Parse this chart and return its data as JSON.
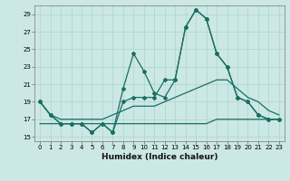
{
  "xlabel": "Humidex (Indice chaleur)",
  "bg_color": "#cce8e4",
  "grid_color": "#aad4d0",
  "line_color": "#1a6e64",
  "xlim": [
    -0.5,
    23.5
  ],
  "ylim": [
    14.5,
    30.0
  ],
  "yticks": [
    15,
    17,
    19,
    21,
    23,
    25,
    27,
    29
  ],
  "xticks": [
    0,
    1,
    2,
    3,
    4,
    5,
    6,
    7,
    8,
    9,
    10,
    11,
    12,
    13,
    14,
    15,
    16,
    17,
    18,
    19,
    20,
    21,
    22,
    23
  ],
  "line1_x": [
    0,
    1,
    2,
    3,
    4,
    5,
    6,
    7,
    8,
    9,
    10,
    11,
    12,
    13,
    14,
    15,
    16,
    17,
    18,
    19,
    20,
    21,
    22,
    23
  ],
  "line1_y": [
    19.0,
    17.5,
    16.5,
    16.5,
    16.5,
    15.5,
    16.5,
    15.5,
    19.0,
    19.5,
    19.5,
    19.5,
    21.5,
    21.5,
    27.5,
    29.5,
    28.5,
    24.5,
    23.0,
    19.5,
    19.0,
    17.5,
    17.0,
    17.0
  ],
  "line2_x": [
    0,
    1,
    2,
    3,
    4,
    5,
    6,
    7,
    8,
    9,
    10,
    11,
    12,
    13,
    14,
    15,
    16,
    17,
    18,
    19,
    20,
    21,
    22,
    23
  ],
  "line2_y": [
    19.0,
    17.5,
    16.5,
    16.5,
    16.5,
    15.5,
    16.5,
    15.5,
    20.5,
    24.5,
    22.5,
    20.0,
    19.5,
    21.5,
    27.5,
    29.5,
    28.5,
    24.5,
    23.0,
    19.5,
    19.0,
    17.5,
    17.0,
    17.0
  ],
  "line3_x": [
    0,
    1,
    2,
    3,
    4,
    5,
    6,
    7,
    8,
    9,
    10,
    11,
    12,
    13,
    14,
    15,
    16,
    17,
    18,
    19,
    20,
    21,
    22,
    23
  ],
  "line3_y": [
    16.5,
    16.5,
    16.5,
    16.5,
    16.5,
    16.5,
    16.5,
    16.5,
    16.5,
    16.5,
    16.5,
    16.5,
    16.5,
    16.5,
    16.5,
    16.5,
    16.5,
    17.0,
    17.0,
    17.0,
    17.0,
    17.0,
    17.0,
    17.0
  ],
  "line4_x": [
    0,
    1,
    2,
    3,
    4,
    5,
    6,
    7,
    8,
    9,
    10,
    11,
    12,
    13,
    14,
    15,
    16,
    17,
    18,
    19,
    20,
    21,
    22,
    23
  ],
  "line4_y": [
    19.0,
    17.5,
    17.0,
    17.0,
    17.0,
    17.0,
    17.0,
    17.5,
    18.0,
    18.5,
    18.5,
    18.5,
    19.0,
    19.5,
    20.0,
    20.5,
    21.0,
    21.5,
    21.5,
    20.5,
    19.5,
    19.0,
    18.0,
    17.5
  ]
}
